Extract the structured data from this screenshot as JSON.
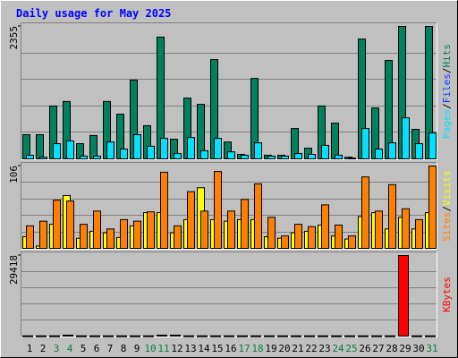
{
  "chart_data": {
    "type": "bar",
    "title": "Daily usage for May 2025",
    "categories": [
      "1",
      "2",
      "3",
      "4",
      "5",
      "6",
      "7",
      "8",
      "9",
      "10",
      "11",
      "12",
      "13",
      "14",
      "15",
      "16",
      "17",
      "18",
      "19",
      "20",
      "21",
      "22",
      "23",
      "24",
      "25",
      "26",
      "27",
      "28",
      "29",
      "30",
      "31"
    ],
    "category_colors": [
      "#000000",
      "#000000",
      "#008040",
      "#008040",
      "#000000",
      "#000000",
      "#000000",
      "#000000",
      "#000000",
      "#008040",
      "#008040",
      "#000000",
      "#000000",
      "#000000",
      "#000000",
      "#000000",
      "#008040",
      "#008040",
      "#000000",
      "#000000",
      "#000000",
      "#000000",
      "#000000",
      "#008040",
      "#008040",
      "#000000",
      "#000000",
      "#000000",
      "#000000",
      "#000000",
      "#008040"
    ],
    "legend_separator": "/",
    "panels": [
      {
        "ylim": [
          0,
          2355
        ],
        "yticks": [
          2355
        ],
        "series": [
          {
            "name": "Pages",
            "color": "#00E0FF",
            "values": [
              65,
              30,
              270,
              320,
              50,
              50,
              300,
              175,
              430,
              225,
              365,
              95,
              380,
              145,
              365,
              125,
              65,
              285,
              50,
              50,
              95,
              80,
              240,
              65,
              15,
              540,
              175,
              285,
              730,
              270,
              460
            ]
          },
          {
            "name": "Files",
            "color": "#0040FF",
            "values": [
              null,
              null,
              null,
              null,
              null,
              null,
              null,
              null,
              null,
              null,
              null,
              null,
              null,
              null,
              null,
              null,
              null,
              null,
              null,
              null,
              null,
              null,
              null,
              null,
              null,
              null,
              null,
              null,
              null,
              null,
              null
            ]
          },
          {
            "name": "Hits",
            "color": "#00805C",
            "values": [
              430,
              430,
              940,
              1020,
              270,
              415,
              1020,
              795,
              1400,
              590,
              2165,
              350,
              1080,
              970,
              1765,
              300,
              80,
              1430,
              65,
              65,
              540,
              190,
              940,
              635,
              30,
              2130,
              905,
              1750,
              2355,
              525,
              2355
            ]
          }
        ]
      },
      {
        "ylim": [
          0,
          106
        ],
        "yticks": [
          106
        ],
        "series": [
          {
            "name": "Sites",
            "color": "#FF8000",
            "values": [
              29,
              35,
              62,
              61,
              31,
              48,
              25,
              37,
              35,
              47,
              98,
              29,
              73,
              48,
              99,
              48,
              63,
              83,
              40,
              16,
              31,
              28,
              56,
              30,
              16,
              92,
              48,
              82,
              51,
              37,
              106
            ]
          },
          {
            "name": "Visits",
            "color": "#FFFF00",
            "values": [
              15,
              3,
              31,
              68,
              13,
              22,
              20,
              14,
              29,
              46,
              46,
              20,
              37,
              78,
              37,
              35,
              37,
              37,
              15,
              13,
              20,
              22,
              30,
              16,
              12,
              41,
              46,
              25,
              40,
              25,
              46
            ]
          }
        ]
      },
      {
        "ylim": [
          0,
          29418
        ],
        "yticks": [
          29418
        ],
        "series": [
          {
            "name": "KBytes",
            "color": "#FF0000",
            "values": [
              100,
              100,
              100,
              350,
              100,
              100,
              100,
              100,
              100,
              100,
              350,
              350,
              100,
              100,
              100,
              100,
              100,
              100,
              100,
              100,
              100,
              100,
              100,
              100,
              100,
              100,
              100,
              100,
              29418,
              100,
              100
            ]
          }
        ]
      }
    ]
  }
}
